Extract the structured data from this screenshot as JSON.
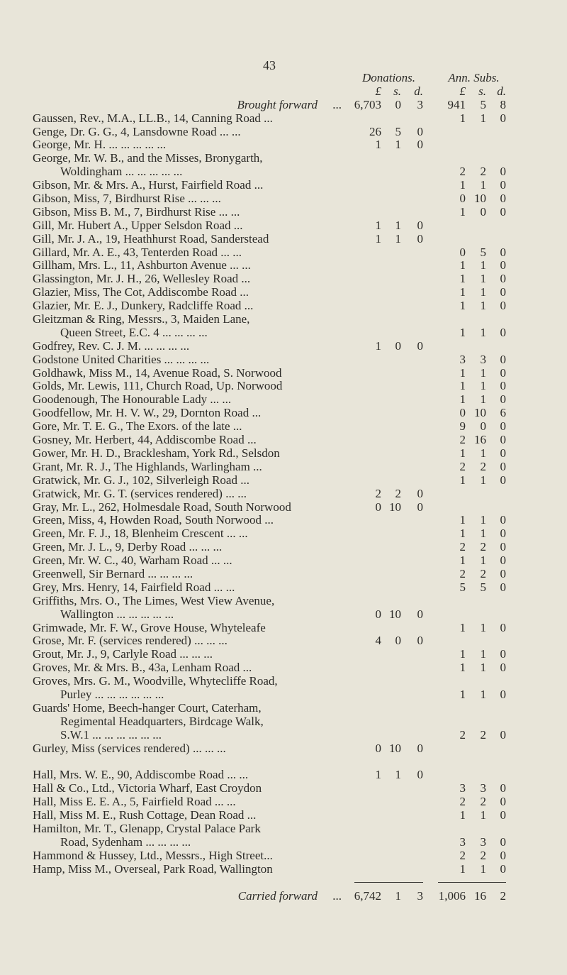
{
  "page_number": "43",
  "headers": {
    "donations": "Donations.",
    "ann_subs": "Ann. Subs.",
    "pound": "£",
    "shillings": "s.",
    "pence": "d."
  },
  "brought_forward": {
    "label": "Brought forward",
    "leader": "...",
    "don": [
      "6,703",
      "0",
      "3"
    ],
    "ann": [
      "941",
      "5",
      "8"
    ]
  },
  "entries": [
    {
      "lines": [
        "Gaussen, Rev., M.A., LL.B., 14, Canning Road ..."
      ],
      "ann": [
        "1",
        "1",
        "0"
      ]
    },
    {
      "lines": [
        "Genge, Dr. G. G., 4, Lansdowne Road  ...   ..."
      ],
      "don": [
        "26",
        "5",
        "0"
      ]
    },
    {
      "lines": [
        "George, Mr. H.   ...   ...   ...   ...   ..."
      ],
      "don": [
        "1",
        "1",
        "0"
      ]
    },
    {
      "lines": [
        "George, Mr. W. B., and the Misses, Bronygarth,",
        "Woldingham   ...   ...   ...   ...   ..."
      ],
      "ann": [
        "2",
        "2",
        "0"
      ]
    },
    {
      "lines": [
        "Gibson, Mr. & Mrs. A., Hurst, Fairfield Road ..."
      ],
      "ann": [
        "1",
        "1",
        "0"
      ]
    },
    {
      "lines": [
        "Gibson, Miss, 7, Birdhurst Rise   ...   ...   ..."
      ],
      "ann": [
        "0",
        "10",
        "0"
      ]
    },
    {
      "lines": [
        "Gibson, Miss B. M., 7, Birdhurst Rise   ...   ..."
      ],
      "ann": [
        "1",
        "0",
        "0"
      ]
    },
    {
      "lines": [
        "Gill, Mr. Hubert A., Upper Selsdon Road   ..."
      ],
      "don": [
        "1",
        "1",
        "0"
      ]
    },
    {
      "lines": [
        "Gill, Mr. J. A., 19, Heathhurst Road, Sanderstead"
      ],
      "don": [
        "1",
        "1",
        "0"
      ]
    },
    {
      "lines": [
        "Gillard, Mr. A. E., 43, Tenterden Road ...   ..."
      ],
      "ann": [
        "0",
        "5",
        "0"
      ]
    },
    {
      "lines": [
        "Gillham, Mrs. L., 11, Ashburton Avenue ...   ..."
      ],
      "ann": [
        "1",
        "1",
        "0"
      ]
    },
    {
      "lines": [
        "Glassington, Mr. J. H., 26, Wellesley Road   ..."
      ],
      "ann": [
        "1",
        "1",
        "0"
      ]
    },
    {
      "lines": [
        "Glazier, Miss, The Cot, Addiscombe Road   ..."
      ],
      "ann": [
        "1",
        "1",
        "0"
      ]
    },
    {
      "lines": [
        "Glazier, Mr. E. J., Dunkery, Radcliffe Road   ..."
      ],
      "ann": [
        "1",
        "1",
        "0"
      ]
    },
    {
      "lines": [
        "Gleitzman & Ring, Messrs., 3, Maiden Lane,",
        "Queen Street, E.C. 4 ...   ...   ...   ..."
      ],
      "ann": [
        "1",
        "1",
        "0"
      ]
    },
    {
      "lines": [
        "Godfrey, Rev. C. J. M.   ...   ...   ...   ..."
      ],
      "don": [
        "1",
        "0",
        "0"
      ]
    },
    {
      "lines": [
        "Godstone United Charities ...   ...   ...   ..."
      ],
      "ann": [
        "3",
        "3",
        "0"
      ]
    },
    {
      "lines": [
        "Goldhawk, Miss M., 14, Avenue Road, S. Norwood"
      ],
      "ann": [
        "1",
        "1",
        "0"
      ]
    },
    {
      "lines": [
        "Golds, Mr. Lewis, 111, Church Road, Up. Norwood"
      ],
      "ann": [
        "1",
        "1",
        "0"
      ]
    },
    {
      "lines": [
        "Goodenough, The Honourable Lady   ...   ..."
      ],
      "ann": [
        "1",
        "1",
        "0"
      ]
    },
    {
      "lines": [
        "Goodfellow, Mr. H. V. W., 29, Dornton Road ..."
      ],
      "ann": [
        "0",
        "10",
        "6"
      ]
    },
    {
      "lines": [
        "Gore, Mr. T. E. G., The Exors. of the late   ..."
      ],
      "ann": [
        "9",
        "0",
        "0"
      ]
    },
    {
      "lines": [
        "Gosney, Mr. Herbert, 44, Addiscombe Road   ..."
      ],
      "ann": [
        "2",
        "16",
        "0"
      ]
    },
    {
      "lines": [
        "Gower, Mr. H. D., Bracklesham, York Rd., Selsdon"
      ],
      "ann": [
        "1",
        "1",
        "0"
      ]
    },
    {
      "lines": [
        "Grant, Mr. R. J., The Highlands, Warlingham ..."
      ],
      "ann": [
        "2",
        "2",
        "0"
      ]
    },
    {
      "lines": [
        "Gratwick, Mr. G. J., 102, Silverleigh Road   ..."
      ],
      "ann": [
        "1",
        "1",
        "0"
      ]
    },
    {
      "lines": [
        "Gratwick, Mr. G. T. (services rendered) ...   ..."
      ],
      "don": [
        "2",
        "2",
        "0"
      ]
    },
    {
      "lines": [
        "Gray, Mr. L., 262, Holmesdale Road, South Norwood"
      ],
      "don": [
        "0",
        "10",
        "0"
      ]
    },
    {
      "lines": [
        "Green, Miss, 4, Howden Road, South Norwood ..."
      ],
      "ann": [
        "1",
        "1",
        "0"
      ]
    },
    {
      "lines": [
        "Green, Mr. F. J., 18, Blenheim Crescent ...   ..."
      ],
      "ann": [
        "1",
        "1",
        "0"
      ]
    },
    {
      "lines": [
        "Green, Mr. J. L., 9, Derby Road ...   ...   ..."
      ],
      "ann": [
        "2",
        "2",
        "0"
      ]
    },
    {
      "lines": [
        "Green, Mr. W. C., 40, Warham Road   ...   ..."
      ],
      "ann": [
        "1",
        "1",
        "0"
      ]
    },
    {
      "lines": [
        "Greenwell, Sir Bernard   ...   ...   ...   ..."
      ],
      "ann": [
        "2",
        "2",
        "0"
      ]
    },
    {
      "lines": [
        "Grey, Mrs. Henry, 14, Fairfield Road   ...   ..."
      ],
      "ann": [
        "5",
        "5",
        "0"
      ]
    },
    {
      "lines": [
        "Griffiths, Mrs. O., The Limes, West View Avenue,",
        "Wallington   ...   ...   ...   ...   ..."
      ],
      "don": [
        "0",
        "10",
        "0"
      ]
    },
    {
      "lines": [
        "Grimwade, Mr. F. W., Grove House, Whyteleafe"
      ],
      "ann": [
        "1",
        "1",
        "0"
      ]
    },
    {
      "lines": [
        "Grose, Mr. F. (services rendered) ...   ...   ..."
      ],
      "don": [
        "4",
        "0",
        "0"
      ]
    },
    {
      "lines": [
        "Grout, Mr. J., 9, Carlyle Road   ...   ...   ..."
      ],
      "ann": [
        "1",
        "1",
        "0"
      ]
    },
    {
      "lines": [
        "Groves, Mr. & Mrs. B., 43a, Lenham Road   ..."
      ],
      "ann": [
        "1",
        "1",
        "0"
      ]
    },
    {
      "lines": [
        "Groves, Mrs. G. M., Woodville, Whytecliffe Road,",
        "Purley ...   ...   ...   ...   ...   ..."
      ],
      "ann": [
        "1",
        "1",
        "0"
      ]
    },
    {
      "lines": [
        "Guards' Home, Beech-hanger Court, Caterham,",
        "Regimental Headquarters, Birdcage Walk,",
        "S.W.1 ...   ...   ...   ...   ...   ..."
      ],
      "ann": [
        "2",
        "2",
        "0"
      ]
    },
    {
      "lines": [
        "Gurley, Miss (services rendered)   ...   ...   ..."
      ],
      "don": [
        "0",
        "10",
        "0"
      ]
    },
    {
      "blank": true
    },
    {
      "lines": [
        "Hall, Mrs. W. E., 90, Addiscombe Road ...   ..."
      ],
      "don": [
        "1",
        "1",
        "0"
      ]
    },
    {
      "lines": [
        "Hall & Co., Ltd., Victoria Wharf, East Croydon"
      ],
      "ann": [
        "3",
        "3",
        "0"
      ]
    },
    {
      "lines": [
        "Hall, Miss E. E. A., 5, Fairfield Road   ...   ..."
      ],
      "ann": [
        "2",
        "2",
        "0"
      ]
    },
    {
      "lines": [
        "Hall, Miss M. E., Rush Cottage, Dean Road   ..."
      ],
      "ann": [
        "1",
        "1",
        "0"
      ]
    },
    {
      "lines": [
        "Hamilton, Mr. T., Glenapp, Crystal Palace Park",
        "Road, Sydenham   ...   ...   ...   ..."
      ],
      "ann": [
        "3",
        "3",
        "0"
      ]
    },
    {
      "lines": [
        "Hammond & Hussey, Ltd., Messrs., High Street..."
      ],
      "ann": [
        "2",
        "2",
        "0"
      ]
    },
    {
      "lines": [
        "Hamp, Miss M., Overseal, Park Road, Wallington"
      ],
      "ann": [
        "1",
        "1",
        "0"
      ]
    }
  ],
  "carried_forward": {
    "label": "Carried forward",
    "leader": "...",
    "don": [
      "6,742",
      "1",
      "3"
    ],
    "ann": [
      "1,006",
      "16",
      "2"
    ]
  }
}
